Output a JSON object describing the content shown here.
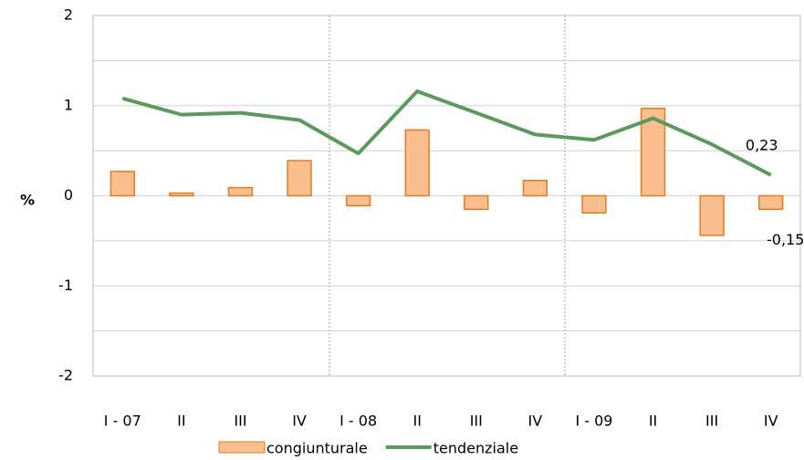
{
  "chart_data": {
    "type": "bar_line",
    "y_label": "%",
    "categories": [
      "I - 07",
      "II",
      "III",
      "IV",
      "I - 08",
      "II",
      "III",
      "IV",
      "I - 09",
      "II",
      "III",
      "IV"
    ],
    "series": [
      {
        "name": "congiunturale",
        "type": "bar",
        "color": "#f9bf8f",
        "edge_color": "#e07b25",
        "values": [
          0.27,
          0.03,
          0.09,
          0.39,
          -0.11,
          0.73,
          -0.15,
          0.17,
          -0.19,
          0.97,
          -0.44,
          -0.15
        ],
        "value_labels": [
          null,
          null,
          null,
          null,
          null,
          null,
          null,
          null,
          null,
          null,
          null,
          "-0,15"
        ]
      },
      {
        "name": "tendenziale",
        "type": "line",
        "color": "#5a9a5c",
        "values": [
          1.08,
          0.9,
          0.92,
          0.84,
          0.47,
          1.16,
          0.92,
          0.68,
          0.62,
          0.86,
          0.57,
          0.23
        ],
        "value_labels": [
          null,
          null,
          null,
          null,
          null,
          null,
          null,
          null,
          null,
          null,
          null,
          "0,23"
        ]
      }
    ],
    "ylim": [
      -2,
      2
    ],
    "yticks": [
      -2,
      -1,
      0,
      1,
      2
    ],
    "grid": true,
    "minor_grid": true,
    "legend": "bottom"
  }
}
